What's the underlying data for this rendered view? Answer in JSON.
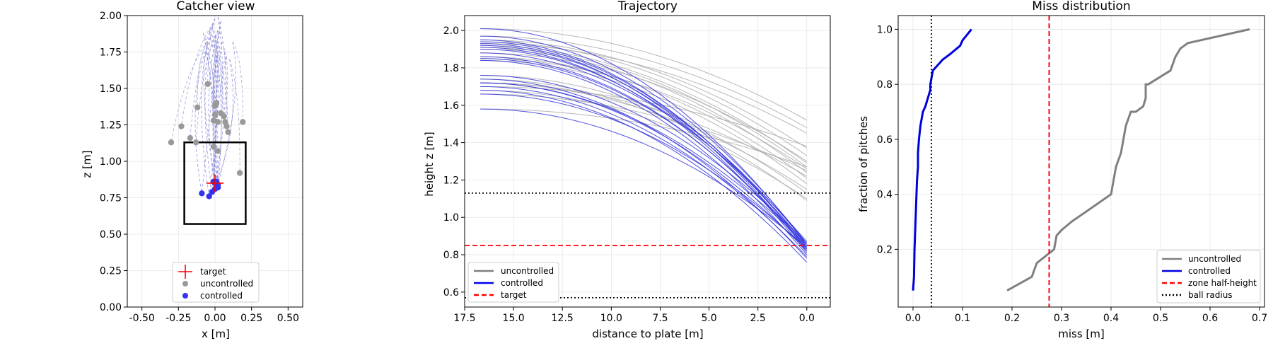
{
  "panel1": {
    "title": "Catcher view",
    "xlabel": "x [m]",
    "ylabel": "z [m]",
    "xlim": [
      -0.6,
      0.6
    ],
    "ylim": [
      0.0,
      2.0
    ],
    "xticks": [
      "-0.50",
      "-0.25",
      "0.00",
      "0.25",
      "0.50"
    ],
    "yticks": [
      "0.00",
      "0.25",
      "0.50",
      "0.75",
      "1.00",
      "1.25",
      "1.50",
      "1.75",
      "2.00"
    ],
    "legend": [
      {
        "label": "target",
        "marker": "plus",
        "color": "#ff0000"
      },
      {
        "label": "uncontrolled",
        "marker": "dot",
        "color": "#999999"
      },
      {
        "label": "controlled",
        "marker": "dot",
        "color": "#3333ee"
      }
    ]
  },
  "panel2": {
    "title": "Trajectory",
    "xlabel": "distance to plate [m]",
    "ylabel": "height z [m]",
    "xlim": [
      17.5,
      -1.2
    ],
    "ylim": [
      0.52,
      2.08
    ],
    "xticks": [
      "17.5",
      "15.0",
      "12.5",
      "10.0",
      "7.5",
      "5.0",
      "2.5",
      "0.0"
    ],
    "yticks": [
      "0.6",
      "0.8",
      "1.0",
      "1.2",
      "1.4",
      "1.6",
      "1.8",
      "2.0"
    ],
    "legend": [
      {
        "label": "uncontrolled",
        "style": "solid",
        "color": "#808080"
      },
      {
        "label": "controlled",
        "style": "solid",
        "color": "#0000ee"
      },
      {
        "label": "target",
        "style": "dashed",
        "color": "#ff0000"
      }
    ]
  },
  "panel3": {
    "title": "Miss distribution",
    "xlabel": "miss [m]",
    "ylabel": "fraction of pitches",
    "xlim": [
      -0.03,
      0.71
    ],
    "ylim": [
      -0.01,
      1.05
    ],
    "xticks": [
      "0.0",
      "0.1",
      "0.2",
      "0.3",
      "0.4",
      "0.5",
      "0.6",
      "0.7"
    ],
    "yticks": [
      "0.2",
      "0.4",
      "0.6",
      "0.8",
      "1.0"
    ],
    "legend": [
      {
        "label": "uncontrolled",
        "style": "solid",
        "color": "#808080"
      },
      {
        "label": "controlled",
        "style": "solid",
        "color": "#0000dd"
      },
      {
        "label": "zone half-height",
        "style": "dashed",
        "color": "#ff0000"
      },
      {
        "label": "ball radius",
        "style": "dotted",
        "color": "#000000"
      }
    ]
  },
  "chart_data": [
    {
      "type": "scatter",
      "title": "Catcher view",
      "xlabel": "x [m]",
      "ylabel": "z [m]",
      "xlim": [
        -0.6,
        0.6
      ],
      "ylim": [
        0.0,
        2.0
      ],
      "grid": true,
      "legend_position": "bottom-center",
      "target": {
        "x": 0.0,
        "z": 0.85
      },
      "strike_zone": {
        "x0": -0.21,
        "x1": 0.21,
        "z0": 0.57,
        "z1": 1.13
      },
      "series": [
        {
          "name": "uncontrolled",
          "color": "#999999",
          "points": [
            [
              -0.3,
              1.13
            ],
            [
              -0.23,
              1.24
            ],
            [
              -0.17,
              1.16
            ],
            [
              -0.13,
              1.13
            ],
            [
              -0.12,
              1.37
            ],
            [
              -0.05,
              1.53
            ],
            [
              0.0,
              1.38
            ],
            [
              0.01,
              1.4
            ],
            [
              0.0,
              1.32
            ],
            [
              -0.01,
              1.28
            ],
            [
              0.02,
              1.27
            ],
            [
              0.04,
              1.33
            ],
            [
              0.06,
              1.31
            ],
            [
              0.07,
              1.27
            ],
            [
              0.08,
              1.24
            ],
            [
              0.09,
              1.2
            ],
            [
              -0.01,
              1.1
            ],
            [
              0.02,
              1.07
            ],
            [
              0.17,
              0.92
            ],
            [
              0.19,
              1.27
            ]
          ]
        },
        {
          "name": "controlled",
          "color": "#3333ee",
          "points": [
            [
              -0.09,
              0.78
            ],
            [
              -0.04,
              0.76
            ],
            [
              -0.02,
              0.79
            ],
            [
              0.0,
              0.81
            ],
            [
              0.01,
              0.83
            ],
            [
              0.02,
              0.82
            ],
            [
              0.0,
              0.85
            ],
            [
              -0.01,
              0.86
            ],
            [
              0.01,
              0.86
            ],
            [
              0.02,
              0.84
            ]
          ]
        }
      ]
    },
    {
      "type": "line",
      "title": "Trajectory",
      "xlabel": "distance to plate [m]",
      "ylabel": "height z [m]",
      "xlim": [
        17.5,
        -1.2
      ],
      "ylim": [
        0.52,
        2.08
      ],
      "grid": true,
      "legend_position": "bottom-left",
      "hlines": [
        {
          "y": 1.13,
          "style": "dotted",
          "color": "#000000"
        },
        {
          "y": 0.85,
          "style": "dashed",
          "color": "#ff0000"
        },
        {
          "y": 0.57,
          "style": "dotted",
          "color": "#000000"
        }
      ],
      "series": [
        {
          "name": "uncontrolled",
          "color": "#aaaaaa",
          "x_start": 16.7,
          "curves": [
            [
              2.01,
              1.52
            ],
            [
              1.97,
              1.48
            ],
            [
              1.95,
              1.37
            ],
            [
              1.94,
              1.33
            ],
            [
              1.93,
              1.45
            ],
            [
              1.92,
              1.29
            ],
            [
              1.91,
              1.27
            ],
            [
              1.9,
              1.24
            ],
            [
              1.88,
              1.3
            ],
            [
              1.86,
              1.21
            ],
            [
              1.85,
              1.26
            ],
            [
              1.84,
              1.18
            ],
            [
              1.76,
              1.13
            ],
            [
              1.74,
              1.09
            ],
            [
              1.72,
              1.15
            ],
            [
              1.72,
              1.22
            ],
            [
              1.7,
              1.38
            ],
            [
              1.68,
              1.1
            ],
            [
              1.66,
              1.25
            ],
            [
              1.58,
              1.27
            ]
          ]
        },
        {
          "name": "controlled",
          "color": "#3333dd",
          "x_start": 16.7,
          "curves": [
            [
              2.01,
              0.85
            ],
            [
              1.97,
              0.86
            ],
            [
              1.95,
              0.83
            ],
            [
              1.94,
              0.84
            ],
            [
              1.93,
              0.82
            ],
            [
              1.92,
              0.86
            ],
            [
              1.91,
              0.81
            ],
            [
              1.9,
              0.85
            ],
            [
              1.88,
              0.87
            ],
            [
              1.86,
              0.83
            ],
            [
              1.85,
              0.84
            ],
            [
              1.84,
              0.8
            ],
            [
              1.76,
              0.86
            ],
            [
              1.74,
              0.78
            ],
            [
              1.72,
              0.85
            ],
            [
              1.72,
              0.82
            ],
            [
              1.7,
              0.79
            ],
            [
              1.68,
              0.76
            ],
            [
              1.66,
              0.83
            ],
            [
              1.58,
              0.84
            ]
          ]
        }
      ]
    },
    {
      "type": "line",
      "title": "Miss distribution",
      "xlabel": "miss [m]",
      "ylabel": "fraction of pitches",
      "xlim": [
        -0.03,
        0.71
      ],
      "ylim": [
        -0.01,
        1.05
      ],
      "grid": true,
      "legend_position": "bottom-right",
      "vlines": [
        {
          "name": "zone half-height",
          "x": 0.275,
          "style": "dashed",
          "color": "#ff0000"
        },
        {
          "name": "ball radius",
          "x": 0.037,
          "style": "dotted",
          "color": "#000000"
        }
      ],
      "series": [
        {
          "name": "uncontrolled",
          "color": "#808080",
          "x": [
            0.19,
            0.24,
            0.25,
            0.285,
            0.29,
            0.3,
            0.32,
            0.36,
            0.4,
            0.405,
            0.41,
            0.42,
            0.425,
            0.43,
            0.44,
            0.45,
            0.465,
            0.47,
            0.47,
            0.475,
            0.52,
            0.53,
            0.54,
            0.555,
            0.68
          ],
          "y": [
            0.05,
            0.1,
            0.15,
            0.2,
            0.25,
            0.27,
            0.3,
            0.35,
            0.4,
            0.45,
            0.5,
            0.55,
            0.6,
            0.65,
            0.7,
            0.7,
            0.72,
            0.75,
            0.8,
            0.8,
            0.85,
            0.9,
            0.93,
            0.95,
            1.0
          ]
        },
        {
          "name": "controlled",
          "color": "#0000dd",
          "x": [
            0.0,
            0.002,
            0.003,
            0.005,
            0.007,
            0.008,
            0.01,
            0.01,
            0.012,
            0.015,
            0.02,
            0.025,
            0.03,
            0.035,
            0.035,
            0.04,
            0.05,
            0.06,
            0.075,
            0.095,
            0.1,
            0.118
          ],
          "y": [
            0.05,
            0.1,
            0.2,
            0.3,
            0.4,
            0.45,
            0.5,
            0.55,
            0.6,
            0.65,
            0.7,
            0.72,
            0.75,
            0.78,
            0.8,
            0.85,
            0.87,
            0.89,
            0.91,
            0.94,
            0.96,
            1.0
          ]
        }
      ]
    }
  ]
}
